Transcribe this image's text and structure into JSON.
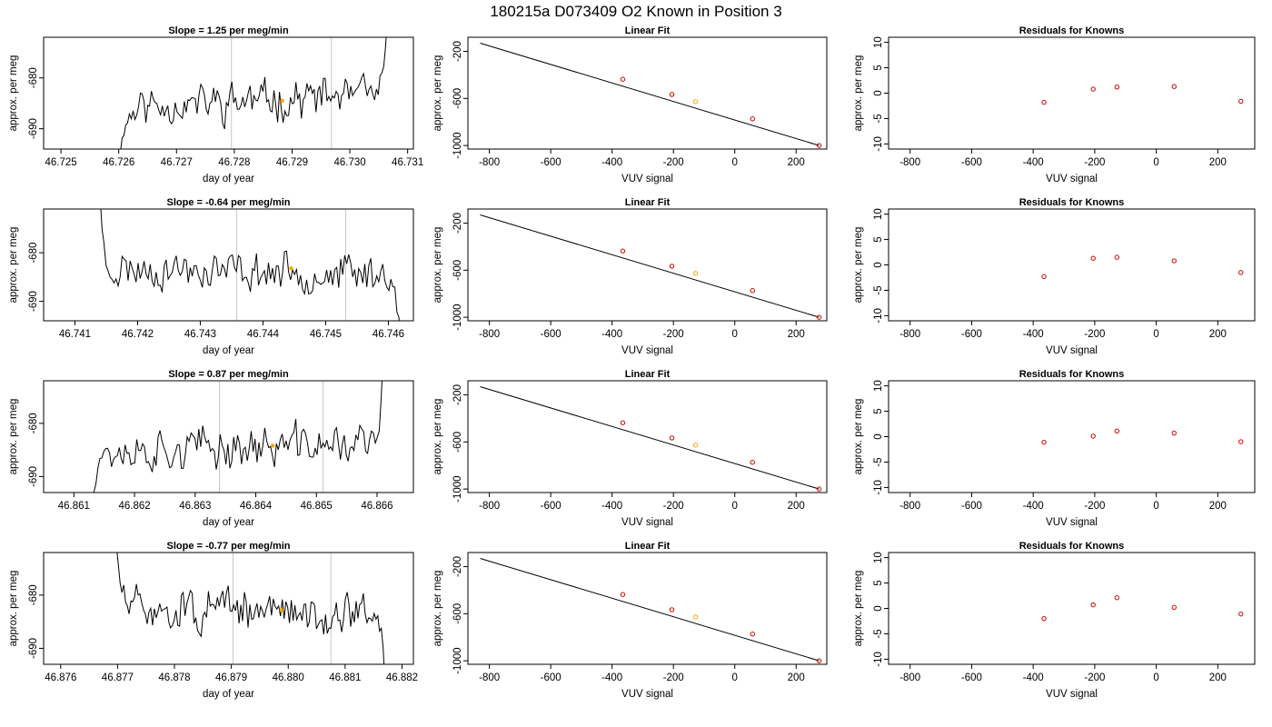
{
  "figure": {
    "title": "180215a     D073409   O2 Known in Position  3",
    "colors": {
      "trace": "#000000",
      "vline": "#c8c8c8",
      "highlight": "#ffa500",
      "point": "#cc0000",
      "fit": "#000000"
    }
  },
  "chart_data": [
    {
      "row": 1,
      "panel": "time-series",
      "type": "line",
      "title": "Slope =  1.25  per meg/min",
      "xlabel": "day of year",
      "ylabel": "approx. per meg",
      "xlim": [
        46.7247,
        46.7311
      ],
      "ylim": [
        -694,
        -672
      ],
      "xticks": [
        "46.725",
        "46.726",
        "46.727",
        "46.728",
        "46.729",
        "46.730",
        "46.731"
      ],
      "yticks": [
        "-690",
        "-680"
      ],
      "start": 46.7259,
      "end": 46.73065,
      "base": -684.5,
      "slope": 0.6,
      "head": {
        "len": 0.00045,
        "from": -700
      },
      "tail": {
        "len": 0.00012,
        "to": -668
      },
      "vlines": [
        46.72795,
        46.72968
      ],
      "highlight": {
        "x": 46.72883,
        "y": -684.5
      },
      "seed": 11
    },
    {
      "panel": "linear-fit",
      "type": "scatter",
      "title": "Linear Fit",
      "xlabel": "VUV signal",
      "ylabel": "approx. per meg",
      "xlim": [
        -870,
        300
      ],
      "ylim": [
        -1030,
        -80
      ],
      "xticks": [
        "-800",
        "-600",
        "-400",
        "-200",
        "0",
        "200"
      ],
      "yticks": [
        "-1000",
        "-600",
        "-200"
      ],
      "fit": {
        "x": [
          -830,
          275
        ],
        "y": [
          -130,
          -1000
        ]
      },
      "points": {
        "x": [
          -365,
          -205,
          -128,
          58,
          275
        ],
        "y": [
          -437,
          -566,
          -627,
          -773,
          -1000
        ]
      },
      "highlight_index": 2
    },
    {
      "panel": "residuals",
      "type": "scatter",
      "title": "Residuals for Knowns",
      "xlabel": "VUV signal",
      "ylabel": "approx. per meg",
      "xlim": [
        -870,
        320
      ],
      "ylim": [
        -11,
        11
      ],
      "xticks": [
        "-800",
        "-600",
        "-400",
        "-200",
        "0",
        "200"
      ],
      "yticks": [
        "-10",
        "-5",
        "0",
        "5",
        "10"
      ],
      "points": {
        "x": [
          -365,
          -205,
          -128,
          58,
          275
        ],
        "y": [
          -1.8,
          0.8,
          1.2,
          1.3,
          -1.6
        ]
      }
    },
    {
      "row": 2,
      "panel": "time-series",
      "type": "line",
      "title": "Slope =  -0.64  per meg/min",
      "xlabel": "day of year",
      "ylabel": "approx. per meg",
      "xlim": [
        46.7405,
        46.7464
      ],
      "ylim": [
        -694,
        -671
      ],
      "xticks": [
        "46.741",
        "46.742",
        "46.743",
        "46.744",
        "46.745",
        "46.746"
      ],
      "yticks": [
        "-690",
        "-680"
      ],
      "start": 46.7414,
      "end": 46.7462,
      "base": -683.8,
      "slope": -0.35,
      "head": {
        "len": 0.00012,
        "from": -668
      },
      "tail": {
        "len": 0.00018,
        "to": -698
      },
      "vlines": [
        46.74358,
        46.74532
      ],
      "highlight": {
        "x": 46.74445,
        "y": -683.2
      },
      "seed": 23
    },
    {
      "panel": "linear-fit",
      "type": "scatter",
      "title": "Linear Fit",
      "xlabel": "VUV signal",
      "ylabel": "approx. per meg",
      "xlim": [
        -870,
        300
      ],
      "ylim": [
        -1030,
        -80
      ],
      "xticks": [
        "-800",
        "-600",
        "-400",
        "-200",
        "0",
        "200"
      ],
      "yticks": [
        "-1000",
        "-600",
        "-200"
      ],
      "fit": {
        "x": [
          -830,
          275
        ],
        "y": [
          -130,
          -1000
        ]
      },
      "points": {
        "x": [
          -365,
          -205,
          -128,
          58,
          275
        ],
        "y": [
          -437,
          -566,
          -627,
          -773,
          -1000
        ]
      },
      "highlight_index": 2
    },
    {
      "panel": "residuals",
      "type": "scatter",
      "title": "Residuals for Knowns",
      "xlabel": "VUV signal",
      "ylabel": "approx. per meg",
      "xlim": [
        -870,
        320
      ],
      "ylim": [
        -11,
        11
      ],
      "xticks": [
        "-800",
        "-600",
        "-400",
        "-200",
        "0",
        "200"
      ],
      "yticks": [
        "-10",
        "-5",
        "0",
        "5",
        "10"
      ],
      "points": {
        "x": [
          -365,
          -205,
          -128,
          58,
          275
        ],
        "y": [
          -2.3,
          1.3,
          1.5,
          0.8,
          -1.5
        ]
      }
    },
    {
      "row": 3,
      "panel": "time-series",
      "type": "line",
      "title": "Slope =  0.87  per meg/min",
      "xlabel": "day of year",
      "ylabel": "approx. per meg",
      "xlim": [
        46.8605,
        46.8666
      ],
      "ylim": [
        -693,
        -672
      ],
      "xticks": [
        "46.861",
        "46.862",
        "46.863",
        "46.864",
        "46.865",
        "46.866"
      ],
      "yticks": [
        "-690",
        "-680"
      ],
      "start": 46.8613,
      "end": 46.8661,
      "base": -684.5,
      "slope": 0.4,
      "head": {
        "len": 0.00012,
        "from": -696
      },
      "tail": {
        "len": 0.00011,
        "to": -668
      },
      "vlines": [
        46.8634,
        46.86511
      ],
      "highlight": {
        "x": 46.86428,
        "y": -684.2
      },
      "seed": 37
    },
    {
      "panel": "linear-fit",
      "type": "scatter",
      "title": "Linear Fit",
      "xlabel": "VUV signal",
      "ylabel": "approx. per meg",
      "xlim": [
        -870,
        300
      ],
      "ylim": [
        -1030,
        -80
      ],
      "xticks": [
        "-800",
        "-600",
        "-400",
        "-200",
        "0",
        "200"
      ],
      "yticks": [
        "-1000",
        "-600",
        "-200"
      ],
      "fit": {
        "x": [
          -830,
          275
        ],
        "y": [
          -130,
          -1000
        ]
      },
      "points": {
        "x": [
          -365,
          -205,
          -128,
          58,
          275
        ],
        "y": [
          -437,
          -566,
          -627,
          -773,
          -1000
        ]
      },
      "highlight_index": 2
    },
    {
      "panel": "residuals",
      "type": "scatter",
      "title": "Residuals for Knowns",
      "xlabel": "VUV signal",
      "ylabel": "approx. per meg",
      "xlim": [
        -870,
        320
      ],
      "ylim": [
        -11,
        11
      ],
      "xticks": [
        "-800",
        "-600",
        "-400",
        "-200",
        "0",
        "200"
      ],
      "yticks": [
        "-10",
        "-5",
        "0",
        "5",
        "10"
      ],
      "points": {
        "x": [
          -365,
          -205,
          -128,
          58,
          275
        ],
        "y": [
          -1.1,
          0.1,
          1.1,
          0.7,
          -1.0
        ]
      }
    },
    {
      "row": 4,
      "panel": "time-series",
      "type": "line",
      "title": "Slope =  -0.77  per meg/min",
      "xlabel": "day of year",
      "ylabel": "approx. per meg",
      "xlim": [
        46.8757,
        46.8822
      ],
      "ylim": [
        -693,
        -672
      ],
      "xticks": [
        "46.876",
        "46.877",
        "46.878",
        "46.879",
        "46.880",
        "46.881",
        "46.882"
      ],
      "yticks": [
        "-690",
        "-680"
      ],
      "start": 46.87695,
      "end": 46.8817,
      "base": -683.0,
      "slope": -0.25,
      "head": {
        "len": 0.00025,
        "from": -668
      },
      "tail": {
        "len": 0.00013,
        "to": -697
      },
      "vlines": [
        46.87903,
        46.88075
      ],
      "highlight": {
        "x": 46.87988,
        "y": -682.8
      },
      "seed": 51
    },
    {
      "panel": "linear-fit",
      "type": "scatter",
      "title": "Linear Fit",
      "xlabel": "VUV signal",
      "ylabel": "approx. per meg",
      "xlim": [
        -870,
        300
      ],
      "ylim": [
        -1030,
        -80
      ],
      "xticks": [
        "-800",
        "-600",
        "-400",
        "-200",
        "0",
        "200"
      ],
      "yticks": [
        "-1000",
        "-600",
        "-200"
      ],
      "fit": {
        "x": [
          -830,
          275
        ],
        "y": [
          -130,
          -1000
        ]
      },
      "points": {
        "x": [
          -365,
          -205,
          -128,
          58,
          275
        ],
        "y": [
          -437,
          -566,
          -627,
          -773,
          -1000
        ]
      },
      "highlight_index": 2
    },
    {
      "panel": "residuals",
      "type": "scatter",
      "title": "Residuals for Knowns",
      "xlabel": "VUV signal",
      "ylabel": "approx. per meg",
      "xlim": [
        -870,
        320
      ],
      "ylim": [
        -11,
        11
      ],
      "xticks": [
        "-800",
        "-600",
        "-400",
        "-200",
        "0",
        "200"
      ],
      "yticks": [
        "-10",
        "-5",
        "0",
        "5",
        "10"
      ],
      "points": {
        "x": [
          -365,
          -205,
          -128,
          58,
          275
        ],
        "y": [
          -2.0,
          0.7,
          2.1,
          0.2,
          -1.1
        ]
      }
    }
  ]
}
